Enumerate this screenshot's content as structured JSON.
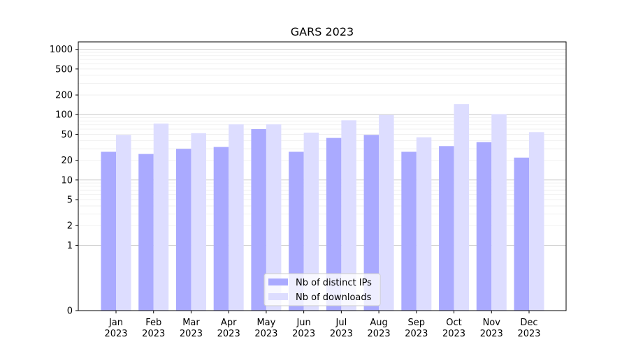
{
  "chart_data": {
    "type": "bar",
    "title": "GARS 2023",
    "xlabel": "",
    "ylabel": "",
    "categories": [
      "Jan\n2023",
      "Feb\n2023",
      "Mar\n2023",
      "Apr\n2023",
      "May\n2023",
      "Jun\n2023",
      "Jul\n2023",
      "Aug\n2023",
      "Sep\n2023",
      "Oct\n2023",
      "Nov\n2023",
      "Dec\n2023"
    ],
    "series": [
      {
        "name": "Nb of distinct IPs",
        "color": "#aaaaff",
        "values": [
          27,
          25,
          30,
          32,
          60,
          27,
          44,
          49,
          27,
          33,
          38,
          22
        ]
      },
      {
        "name": "Nb of downloads",
        "color": "#ddddff",
        "values": [
          49,
          73,
          52,
          71,
          71,
          53,
          82,
          99,
          45,
          145,
          102,
          54
        ]
      }
    ],
    "y_scale": "symlog",
    "ylim": [
      0,
      1300
    ],
    "y_ticks": [
      0,
      1,
      2,
      5,
      10,
      20,
      50,
      100,
      200,
      500,
      1000
    ],
    "legend_position": "lower-center",
    "grid": true
  }
}
